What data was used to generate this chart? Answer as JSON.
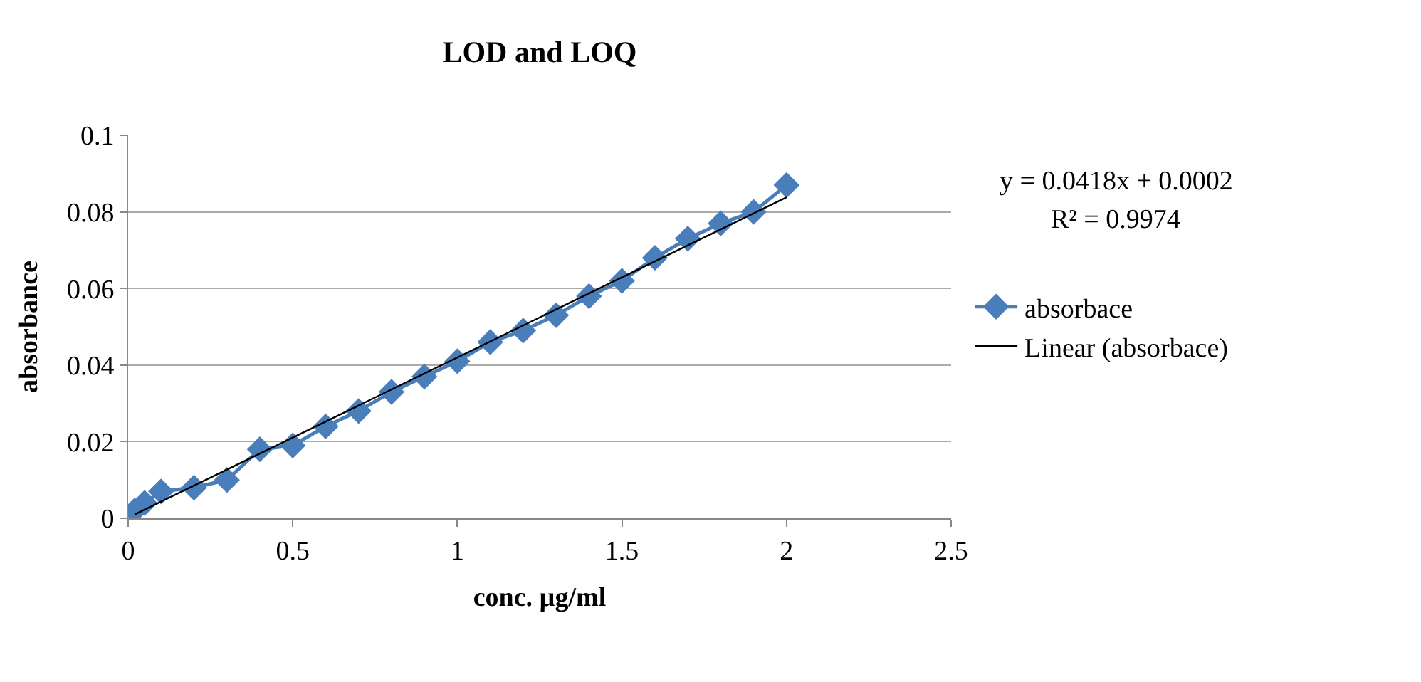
{
  "chart_data": {
    "type": "line",
    "title": "LOD and LOQ",
    "xlabel": "conc. µg/ml",
    "ylabel": "absorbance",
    "series": [
      {
        "name": "absorbace",
        "marker": "diamond",
        "color": "#4a7ebb",
        "x": [
          0.02,
          0.05,
          0.1,
          0.2,
          0.3,
          0.4,
          0.5,
          0.6,
          0.7,
          0.8,
          0.9,
          1.0,
          1.1,
          1.2,
          1.3,
          1.4,
          1.5,
          1.6,
          1.7,
          1.8,
          1.9,
          2.0
        ],
        "values": [
          0.002,
          0.004,
          0.007,
          0.008,
          0.01,
          0.018,
          0.019,
          0.024,
          0.028,
          0.033,
          0.037,
          0.041,
          0.046,
          0.049,
          0.053,
          0.058,
          0.062,
          0.068,
          0.073,
          0.077,
          0.08,
          0.087
        ]
      },
      {
        "name": "Linear (absorbace)",
        "marker": "none",
        "color": "#000000",
        "x": [
          0.02,
          2.0
        ],
        "values": [
          0.001,
          0.0838
        ]
      }
    ],
    "xlim": [
      0,
      2.5
    ],
    "xticks": [
      0,
      0.5,
      1,
      1.5,
      2,
      2.5
    ],
    "ylim": [
      0,
      0.1
    ],
    "yticks": [
      0,
      0.02,
      0.04,
      0.06,
      0.08,
      0.1
    ],
    "grid": "y",
    "legend": "right",
    "annotations": [
      "y = 0.0418x + 0.0002",
      "R² = 0.9974"
    ]
  }
}
